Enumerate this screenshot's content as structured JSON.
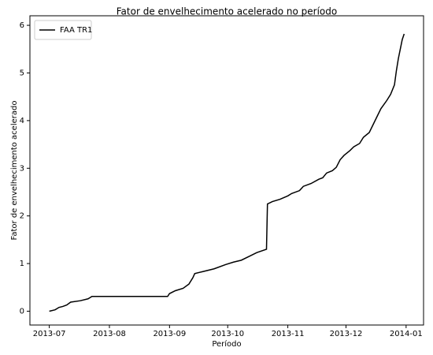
{
  "chart_data": {
    "type": "line",
    "title": "Fator de envelhecimento acelerado no período",
    "xlabel": "Período",
    "ylabel": "Fator de envelhecimento acelerado",
    "x": [
      0,
      3,
      5,
      7,
      9,
      11,
      16,
      20,
      22,
      61,
      62,
      65,
      69,
      72,
      74,
      75,
      79,
      85,
      91,
      95,
      99,
      103,
      107,
      112,
      112.5,
      115,
      119,
      123,
      125,
      129,
      131,
      135,
      139,
      141,
      143,
      146,
      148,
      150,
      152,
      155,
      157,
      160,
      162,
      165,
      168,
      171,
      174,
      176,
      178,
      179,
      180,
      182,
      183
    ],
    "series": [
      {
        "name": "FAA TR1",
        "color": "#000000",
        "values": [
          0,
          0.03,
          0.08,
          0.1,
          0.13,
          0.19,
          0.22,
          0.26,
          0.31,
          0.31,
          0.37,
          0.43,
          0.48,
          0.57,
          0.7,
          0.79,
          0.83,
          0.89,
          0.98,
          1.03,
          1.07,
          1.15,
          1.23,
          1.3,
          2.25,
          2.3,
          2.35,
          2.42,
          2.47,
          2.53,
          2.62,
          2.68,
          2.77,
          2.8,
          2.9,
          2.95,
          3.02,
          3.18,
          3.27,
          3.37,
          3.45,
          3.52,
          3.65,
          3.75,
          4.0,
          4.25,
          4.42,
          4.55,
          4.75,
          5.05,
          5.3,
          5.7,
          5.82
        ]
      }
    ],
    "xlim": [
      -10,
      193
    ],
    "xticks": [
      {
        "value": 0,
        "label": "2013-07"
      },
      {
        "value": 31,
        "label": "2013-08"
      },
      {
        "value": 62,
        "label": "2013-09"
      },
      {
        "value": 92,
        "label": "2013-10"
      },
      {
        "value": 123,
        "label": "2013-11"
      },
      {
        "value": 153,
        "label": "2013-12"
      },
      {
        "value": 184,
        "label": "2014-01"
      }
    ],
    "ylim": [
      -0.29,
      6.2
    ],
    "yticks": [
      0,
      1,
      2,
      3,
      4,
      5,
      6
    ],
    "legend": "upper-left",
    "grid": false
  }
}
